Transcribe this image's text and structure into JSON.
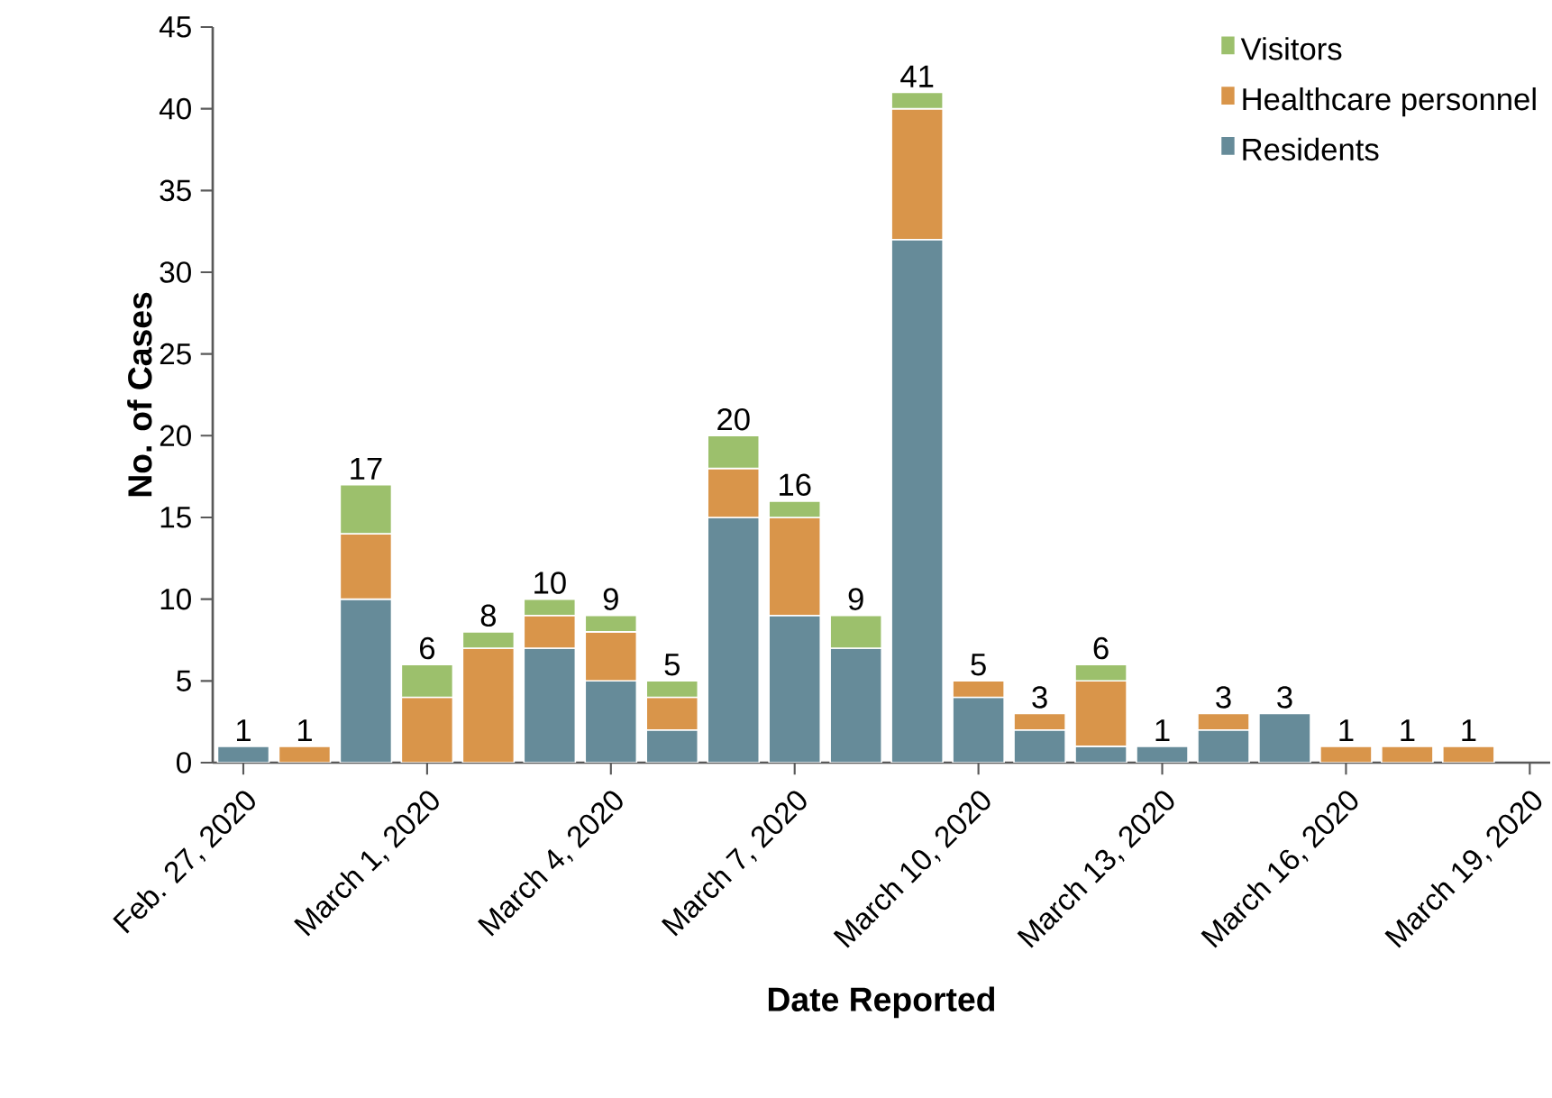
{
  "chart_data": {
    "type": "bar",
    "stacked": true,
    "xlabel": "Date Reported",
    "ylabel": "No. of Cases",
    "x": [
      "2020-02-27",
      "2020-02-28",
      "2020-02-29",
      "2020-03-01",
      "2020-03-02",
      "2020-03-03",
      "2020-03-04",
      "2020-03-05",
      "2020-03-06",
      "2020-03-07",
      "2020-03-08",
      "2020-03-09",
      "2020-03-10",
      "2020-03-11",
      "2020-03-12",
      "2020-03-13",
      "2020-03-14",
      "2020-03-15",
      "2020-03-16",
      "2020-03-17",
      "2020-03-18"
    ],
    "series": [
      {
        "name": "Residents",
        "color": "#668b99",
        "values": [
          1,
          0,
          10,
          0,
          0,
          7,
          5,
          2,
          15,
          9,
          7,
          32,
          4,
          2,
          1,
          1,
          2,
          3,
          0,
          0,
          0
        ]
      },
      {
        "name": "Healthcare personnel",
        "color": "#d9954a",
        "values": [
          0,
          1,
          4,
          4,
          7,
          2,
          3,
          2,
          3,
          6,
          0,
          8,
          1,
          1,
          4,
          0,
          1,
          0,
          1,
          1,
          1
        ]
      },
      {
        "name": "Visitors",
        "color": "#9cc06c",
        "values": [
          0,
          0,
          3,
          2,
          1,
          1,
          1,
          1,
          2,
          1,
          2,
          1,
          0,
          0,
          1,
          0,
          0,
          0,
          0,
          0,
          0
        ]
      }
    ],
    "totals": [
      "1",
      "1",
      "17",
      "6",
      "8",
      "10",
      "9",
      "5",
      "20",
      "16",
      "9",
      "41",
      "5",
      "3",
      "6",
      "1",
      "3",
      "3",
      "1",
      "1",
      "1"
    ],
    "xlim": [
      "2020-02-26T12:00",
      "2020-03-19T08:00"
    ],
    "xticks": [
      {
        "value": "2020-02-27",
        "label": "Feb. 27, 2020"
      },
      {
        "value": "2020-03-01",
        "label": "March 1, 2020"
      },
      {
        "value": "2020-03-04",
        "label": "March 4, 2020"
      },
      {
        "value": "2020-03-07",
        "label": "March 7, 2020"
      },
      {
        "value": "2020-03-10",
        "label": "March 10, 2020"
      },
      {
        "value": "2020-03-13",
        "label": "March 13, 2020"
      },
      {
        "value": "2020-03-16",
        "label": "March 16, 2020"
      },
      {
        "value": "2020-03-19",
        "label": "March 19, 2020"
      }
    ],
    "ylim": [
      0,
      45
    ],
    "yticks": [
      0,
      5,
      10,
      15,
      20,
      25,
      30,
      35,
      40,
      45
    ],
    "grid": false,
    "legend": "top right"
  }
}
